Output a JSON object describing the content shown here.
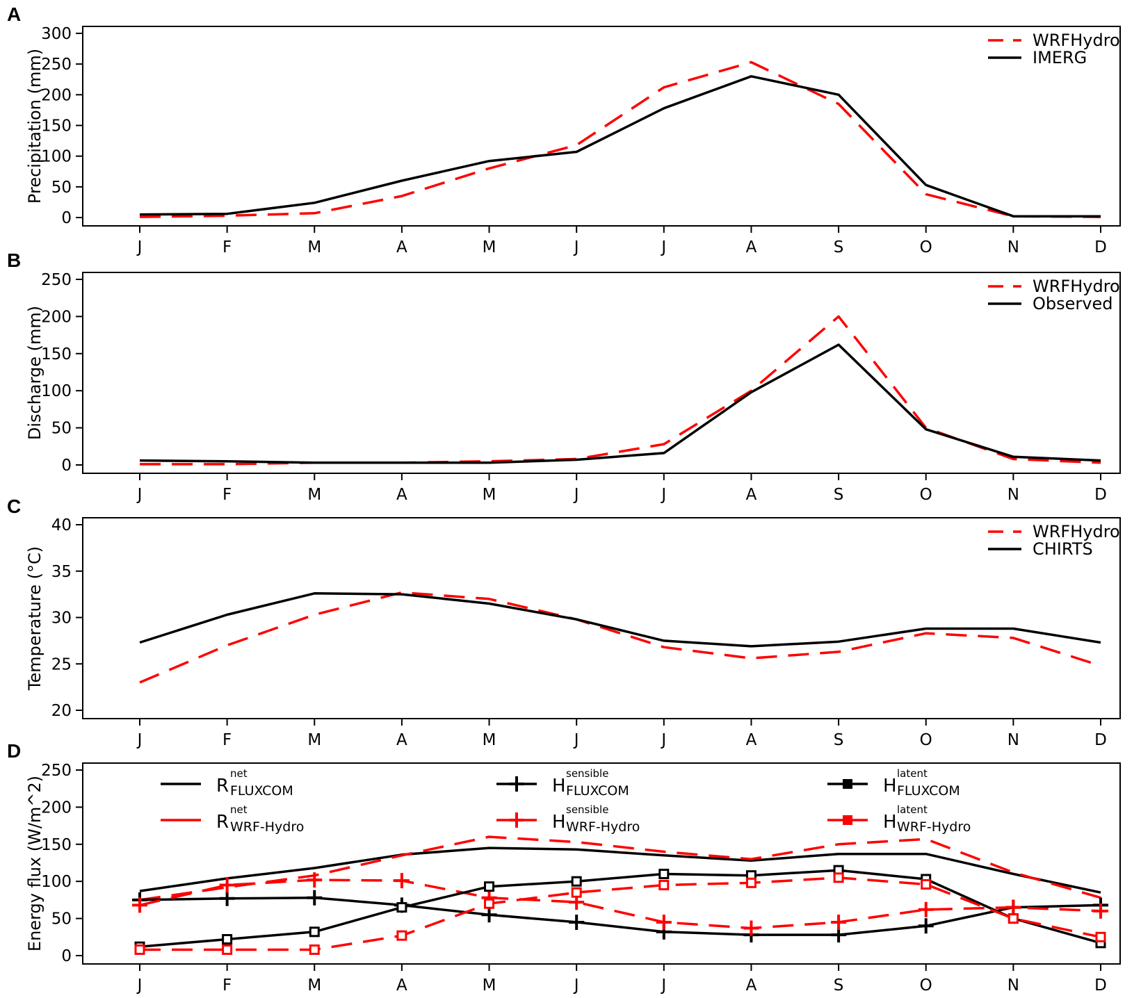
{
  "chart_data": [
    {
      "panel": "A",
      "type": "line",
      "categories": [
        "J",
        "F",
        "M",
        "A",
        "M",
        "J",
        "J",
        "A",
        "S",
        "O",
        "N",
        "D"
      ],
      "ylabel": "Precipitation (mm)",
      "xlabel": "",
      "ylim": [
        0,
        300
      ],
      "yticks": [
        0,
        50,
        100,
        150,
        200,
        250,
        300
      ],
      "legend_position": "top-right",
      "series": [
        {
          "name": "WRFHydro",
          "color": "#ff0000",
          "dash": "dashed",
          "values": [
            1,
            3,
            7,
            35,
            80,
            118,
            212,
            253,
            185,
            38,
            2,
            1
          ]
        },
        {
          "name": "IMERG",
          "color": "#000000",
          "dash": "solid",
          "values": [
            5,
            6,
            24,
            60,
            92,
            107,
            178,
            230,
            200,
            53,
            2,
            2
          ]
        }
      ]
    },
    {
      "panel": "B",
      "type": "line",
      "categories": [
        "J",
        "F",
        "M",
        "A",
        "M",
        "J",
        "J",
        "A",
        "S",
        "O",
        "N",
        "D"
      ],
      "ylabel": "Discharge (mm)",
      "xlabel": "",
      "ylim": [
        0,
        250
      ],
      "yticks": [
        0,
        50,
        100,
        150,
        200,
        250
      ],
      "legend_position": "top-right",
      "series": [
        {
          "name": "WRFHydro",
          "color": "#ff0000",
          "dash": "dashed",
          "values": [
            1,
            1,
            3,
            3,
            5,
            8,
            28,
            100,
            200,
            50,
            8,
            3
          ]
        },
        {
          "name": "Observed",
          "color": "#000000",
          "dash": "solid",
          "values": [
            6,
            5,
            3,
            3,
            3,
            7,
            16,
            98,
            162,
            48,
            11,
            6
          ]
        }
      ]
    },
    {
      "panel": "C",
      "type": "line",
      "categories": [
        "J",
        "F",
        "M",
        "A",
        "M",
        "J",
        "J",
        "A",
        "S",
        "O",
        "N",
        "D"
      ],
      "ylabel": "Temperature (°C)",
      "xlabel": "",
      "ylim": [
        20,
        40
      ],
      "yticks": [
        20,
        25,
        30,
        35,
        40
      ],
      "legend_position": "top-right",
      "series": [
        {
          "name": "WRFHydro",
          "color": "#ff0000",
          "dash": "dashed",
          "values": [
            23.0,
            27.0,
            30.3,
            32.7,
            32.0,
            29.8,
            26.8,
            25.6,
            26.3,
            28.3,
            27.8,
            24.8
          ]
        },
        {
          "name": "CHIRTS",
          "color": "#000000",
          "dash": "solid",
          "values": [
            27.3,
            30.3,
            32.6,
            32.5,
            31.5,
            29.8,
            27.5,
            26.9,
            27.4,
            28.8,
            28.8,
            27.3
          ]
        }
      ]
    },
    {
      "panel": "D",
      "type": "line",
      "categories": [
        "J",
        "F",
        "M",
        "A",
        "M",
        "J",
        "J",
        "A",
        "S",
        "O",
        "N",
        "D"
      ],
      "ylabel": "Energy flux (W/m^2)",
      "xlabel": "",
      "ylim": [
        0,
        250
      ],
      "yticks": [
        0,
        50,
        100,
        150,
        200,
        250
      ],
      "legend_position": "top",
      "series": [
        {
          "name": "R_net_FLUXCOM",
          "base": "R",
          "sup": "net",
          "sub": "FLUXCOM",
          "color": "#000000",
          "dash": "solid",
          "marker": "none",
          "values": [
            87,
            104,
            118,
            136,
            145,
            143,
            135,
            128,
            137,
            137,
            110,
            85
          ]
        },
        {
          "name": "R_net_WRF-Hydro",
          "base": "R",
          "sup": "net",
          "sub": "WRF-Hydro",
          "color": "#ff0000",
          "dash": "dashed",
          "marker": "none",
          "values": [
            75,
            92,
            108,
            135,
            160,
            153,
            140,
            130,
            150,
            157,
            112,
            78
          ]
        },
        {
          "name": "H_sensible_FLUXCOM",
          "base": "H",
          "sup": "sensible",
          "sub": "FLUXCOM",
          "color": "#000000",
          "dash": "solid",
          "marker": "plus",
          "values": [
            75,
            77,
            78,
            68,
            55,
            45,
            32,
            28,
            28,
            40,
            65,
            68
          ]
        },
        {
          "name": "H_sensible_WRF-Hydro",
          "base": "H",
          "sup": "sensible",
          "sub": "WRF-Hydro",
          "color": "#ff0000",
          "dash": "dashed",
          "marker": "plus",
          "values": [
            68,
            95,
            102,
            101,
            78,
            72,
            45,
            37,
            45,
            62,
            65,
            60
          ]
        },
        {
          "name": "H_latent_FLUXCOM",
          "base": "H",
          "sup": "latent",
          "sub": "FLUXCOM",
          "color": "#000000",
          "dash": "solid",
          "marker": "square",
          "values": [
            12,
            22,
            32,
            65,
            93,
            100,
            110,
            108,
            115,
            103,
            50,
            17
          ]
        },
        {
          "name": "H_latent_WRF-Hydro",
          "base": "H",
          "sup": "latent",
          "sub": "WRF-Hydro",
          "color": "#ff0000",
          "dash": "dashed",
          "marker": "square",
          "values": [
            8,
            8,
            8,
            27,
            70,
            85,
            95,
            98,
            105,
            96,
            50,
            25
          ]
        }
      ]
    }
  ]
}
